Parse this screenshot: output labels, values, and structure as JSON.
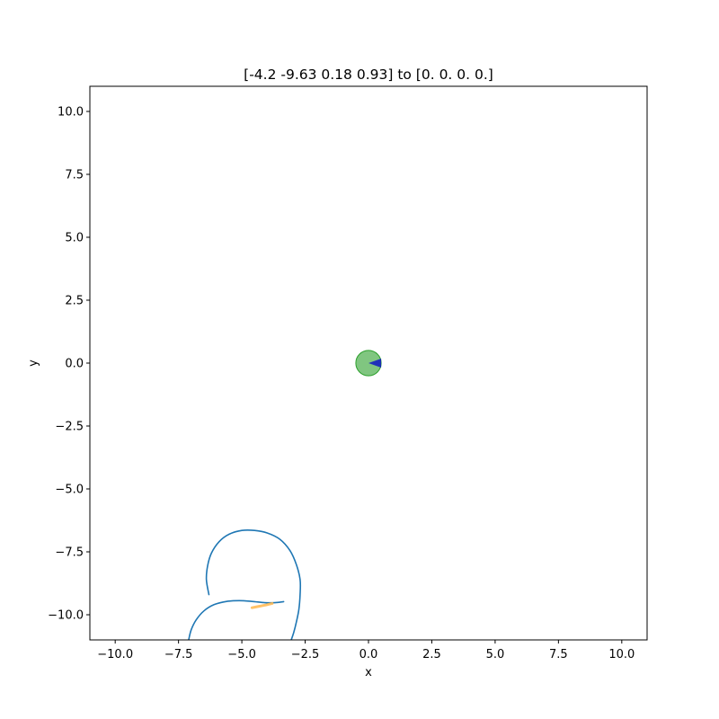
{
  "chart_data": {
    "type": "line",
    "title": "[-4.2  -9.63  0.18  0.93] to [0. 0. 0. 0.]",
    "xlabel": "x",
    "ylabel": "y",
    "xlim": [
      -11,
      11
    ],
    "ylim": [
      -11,
      11
    ],
    "xticks": [
      -10,
      -7.5,
      -5,
      -2.5,
      0,
      2.5,
      5,
      7.5,
      10
    ],
    "yticks": [
      -10,
      -7.5,
      -5,
      -2.5,
      0,
      2.5,
      5,
      7.5,
      10
    ],
    "xtick_labels": [
      "−10.0",
      "−7.5",
      "−5.0",
      "−2.5",
      "0.0",
      "2.5",
      "5.0",
      "7.5",
      "10.0"
    ],
    "ytick_labels": [
      "−10.0",
      "−7.5",
      "−5.0",
      "−2.5",
      "0.0",
      "2.5",
      "5.0",
      "7.5",
      "10.0"
    ],
    "grid": false,
    "colors": {
      "path": "#1f77b4",
      "goal_fill": "#2ca02c",
      "goal_heading": "#0000cc",
      "start_marker": "#ffb74d"
    },
    "series": [
      {
        "x": [
          -6.3,
          -6.4,
          -6.35,
          -6.2,
          -5.9,
          -5.5,
          -5.0,
          -4.5,
          -4.0,
          -3.5,
          -3.1,
          -2.85,
          -2.7,
          -2.7,
          -2.75,
          -2.85,
          -2.95,
          -3.05
        ],
        "y": [
          -9.2,
          -8.6,
          -8.05,
          -7.55,
          -7.1,
          -6.8,
          -6.65,
          -6.65,
          -6.75,
          -7.0,
          -7.45,
          -8.0,
          -8.6,
          -9.2,
          -9.8,
          -10.3,
          -10.7,
          -11.0
        ]
      },
      {
        "x": [
          -7.1,
          -7.0,
          -6.8,
          -6.5,
          -6.1,
          -5.6,
          -5.1,
          -4.6,
          -4.1,
          -3.7,
          -3.35
        ],
        "y": [
          -11.0,
          -10.6,
          -10.2,
          -9.85,
          -9.6,
          -9.47,
          -9.44,
          -9.47,
          -9.52,
          -9.52,
          -9.48
        ]
      }
    ],
    "goal": {
      "x": 0,
      "y": 0,
      "radius": 0.5,
      "heading": 0
    },
    "start_marker": {
      "x": [
        -4.6,
        -4.3,
        -4.0,
        -3.8
      ],
      "y": [
        -9.72,
        -9.66,
        -9.6,
        -9.55
      ]
    }
  }
}
